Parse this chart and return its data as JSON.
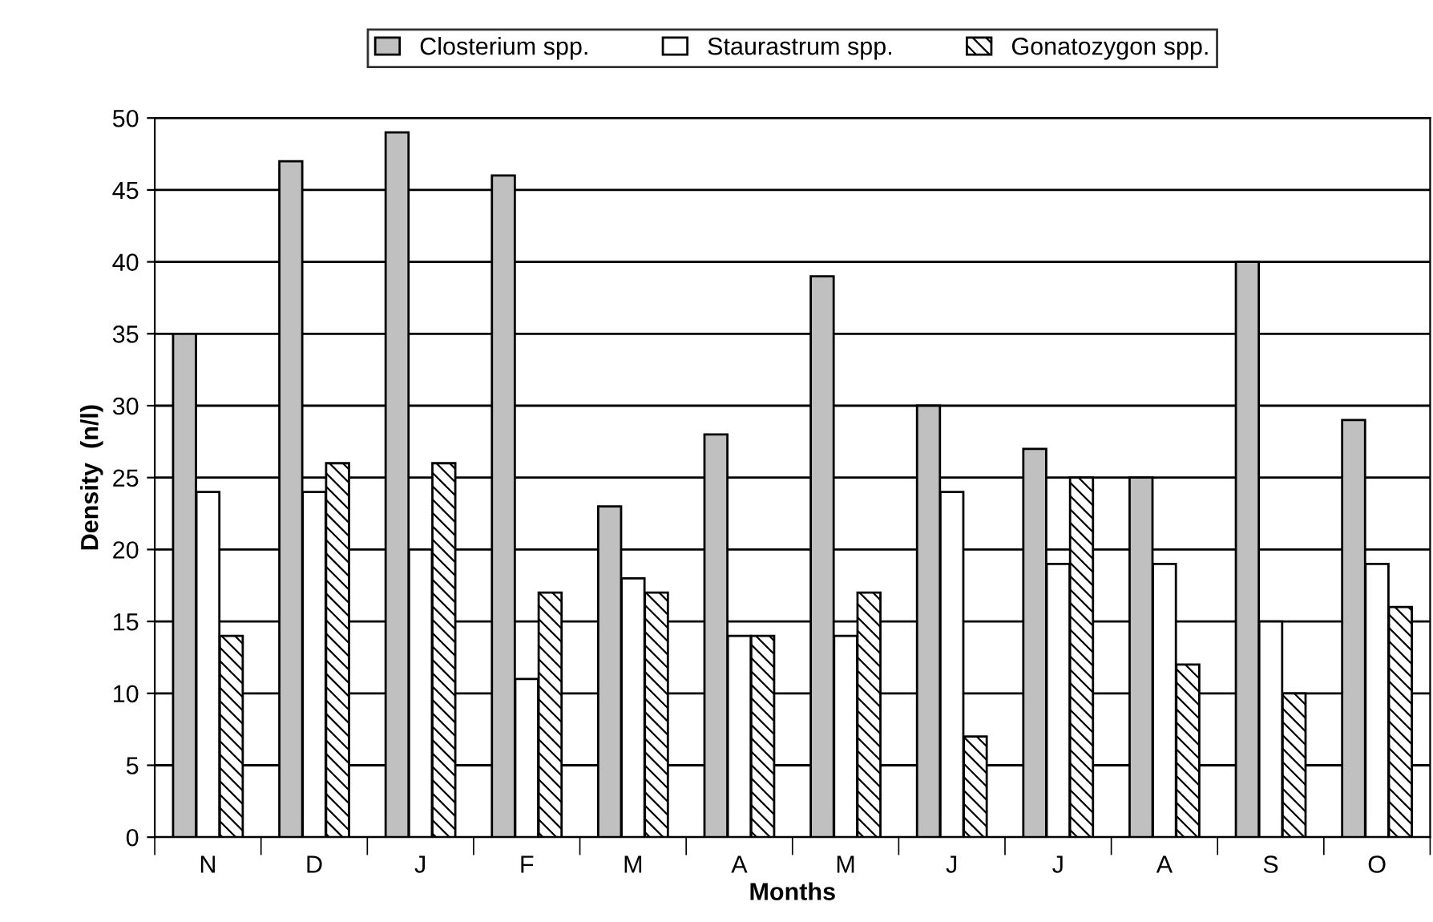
{
  "chart_data": {
    "type": "bar",
    "xlabel": "Months",
    "ylabel": "Density  (n/l)",
    "categories": [
      "N",
      "D",
      "J",
      "F",
      "M",
      "A",
      "M",
      "J",
      "J",
      "A",
      "S",
      "O"
    ],
    "series": [
      {
        "name": "Closterium spp.",
        "color": "#c0c0c0",
        "values": [
          35,
          47,
          49,
          46,
          23,
          28,
          39,
          30,
          27,
          25,
          40,
          29
        ]
      },
      {
        "name": "Staurastrum spp.",
        "color": "#ffffff",
        "values": [
          24,
          24,
          20,
          11,
          18,
          14,
          14,
          24,
          19,
          19,
          15,
          19
        ]
      },
      {
        "name": "Gonatozygon spp.",
        "color": "#000000",
        "values": [
          14,
          26,
          26,
          17,
          17,
          14,
          17,
          7,
          25,
          12,
          10,
          16
        ]
      }
    ],
    "ylim": [
      0,
      50
    ],
    "yticks": [
      0,
      5,
      10,
      15,
      20,
      25,
      30,
      35,
      40,
      45,
      50
    ],
    "grid": "y",
    "legend": "top"
  }
}
